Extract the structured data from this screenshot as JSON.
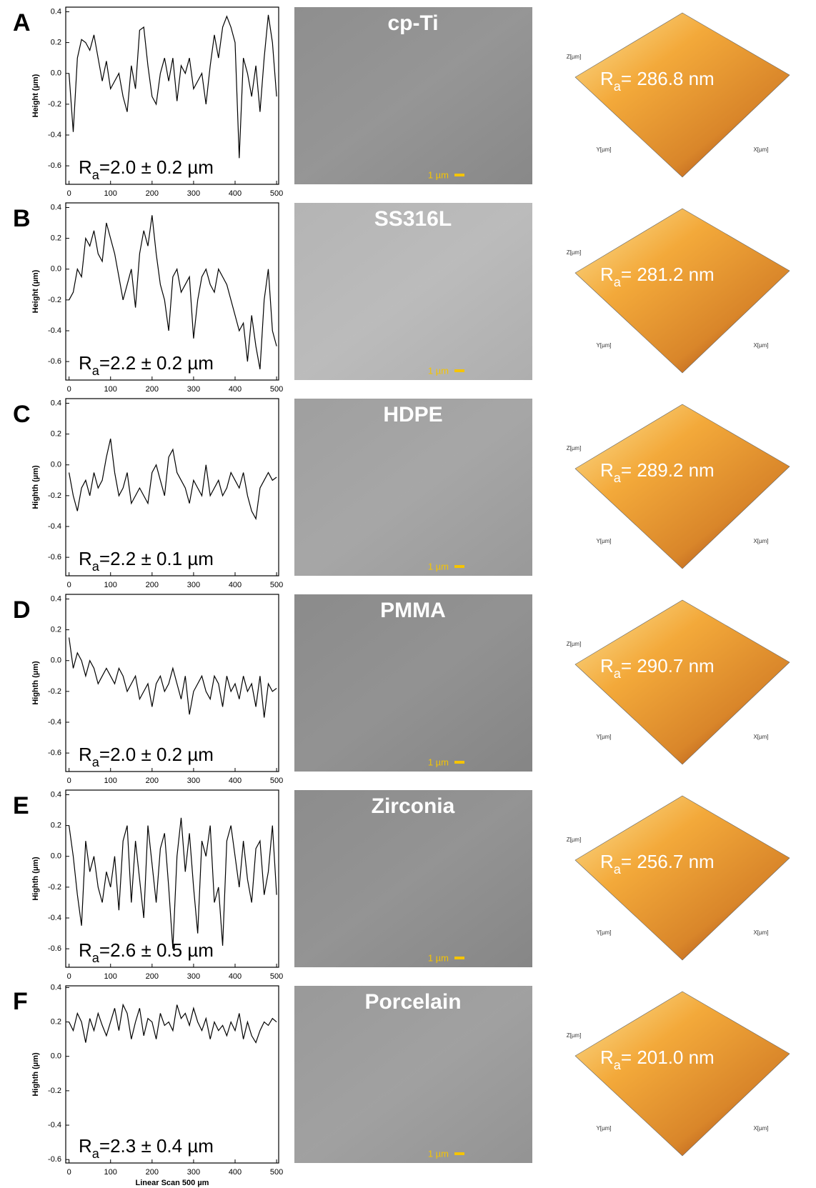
{
  "chart_data": [
    {
      "type": "line",
      "panel": "A",
      "ylabel": "Height (µm)",
      "annotation": [
        "R",
        "a",
        "=2.0 ± 0.2 µm"
      ],
      "color": "#000000",
      "xlim": [
        -8,
        505
      ],
      "ylim": [
        -0.72,
        0.43
      ],
      "xticks": [
        0,
        100,
        200,
        300,
        400,
        500
      ],
      "yticks": [
        0.4,
        0.2,
        {
          "value": 0,
          "label": "0.0"
        },
        -0.2,
        -0.4,
        -0.6
      ],
      "x": [
        0,
        10,
        20,
        30,
        40,
        50,
        60,
        70,
        80,
        90,
        100,
        110,
        120,
        130,
        140,
        150,
        160,
        170,
        180,
        190,
        200,
        210,
        220,
        230,
        240,
        250,
        260,
        270,
        280,
        290,
        300,
        310,
        320,
        330,
        340,
        350,
        360,
        370,
        380,
        390,
        400,
        410,
        420,
        430,
        440,
        450,
        460,
        470,
        480,
        490,
        500
      ],
      "values": [
        0.0,
        -0.38,
        0.1,
        0.22,
        0.2,
        0.15,
        0.25,
        0.1,
        -0.05,
        0.08,
        -0.1,
        -0.05,
        0.0,
        -0.15,
        -0.25,
        0.05,
        -0.1,
        0.28,
        0.3,
        0.05,
        -0.15,
        -0.2,
        0.0,
        0.1,
        -0.05,
        0.1,
        -0.18,
        0.05,
        0.0,
        0.1,
        -0.1,
        -0.05,
        0.0,
        -0.2,
        0.05,
        0.25,
        0.1,
        0.3,
        0.37,
        0.3,
        0.2,
        -0.55,
        0.1,
        0.0,
        -0.15,
        0.05,
        -0.25,
        0.1,
        0.38,
        0.2,
        -0.15
      ]
    },
    {
      "type": "line",
      "panel": "B",
      "ylabel": "Height (µm)",
      "annotation": [
        "R",
        "a",
        "=2.2 ± 0.2 µm"
      ],
      "color": "#000000",
      "xlim": [
        -8,
        505
      ],
      "ylim": [
        -0.72,
        0.43
      ],
      "xticks": [
        0,
        100,
        200,
        300,
        400,
        500
      ],
      "yticks": [
        0.4,
        0.2,
        {
          "value": 0,
          "label": "0.0"
        },
        -0.2,
        -0.4,
        -0.6
      ],
      "x": [
        0,
        10,
        20,
        30,
        40,
        50,
        60,
        70,
        80,
        90,
        100,
        110,
        120,
        130,
        140,
        150,
        160,
        170,
        180,
        190,
        200,
        210,
        220,
        230,
        240,
        250,
        260,
        270,
        280,
        290,
        300,
        310,
        320,
        330,
        340,
        350,
        360,
        370,
        380,
        390,
        400,
        410,
        420,
        430,
        440,
        450,
        460,
        470,
        480,
        490,
        500
      ],
      "values": [
        -0.2,
        -0.15,
        0.0,
        -0.05,
        0.2,
        0.15,
        0.25,
        0.1,
        0.05,
        0.3,
        0.2,
        0.1,
        -0.05,
        -0.2,
        -0.1,
        0.0,
        -0.25,
        0.1,
        0.25,
        0.15,
        0.35,
        0.1,
        -0.1,
        -0.2,
        -0.4,
        -0.05,
        0.0,
        -0.15,
        -0.1,
        -0.05,
        -0.45,
        -0.2,
        -0.05,
        0.0,
        -0.1,
        -0.15,
        0.0,
        -0.05,
        -0.1,
        -0.2,
        -0.3,
        -0.4,
        -0.35,
        -0.6,
        -0.3,
        -0.5,
        -0.65,
        -0.2,
        0.0,
        -0.4,
        -0.5
      ]
    },
    {
      "type": "line",
      "panel": "C",
      "ylabel": "Highth (µm)",
      "annotation": [
        "R",
        "a",
        "=2.2 ± 0.1 µm"
      ],
      "color": "#000000",
      "xlim": [
        -8,
        505
      ],
      "ylim": [
        -0.72,
        0.43
      ],
      "xticks": [
        0,
        100,
        200,
        300,
        400,
        500
      ],
      "yticks": [
        0.4,
        0.2,
        {
          "value": 0,
          "label": "0.0"
        },
        -0.2,
        -0.4,
        -0.6
      ],
      "x": [
        0,
        10,
        20,
        30,
        40,
        50,
        60,
        70,
        80,
        90,
        100,
        110,
        120,
        130,
        140,
        150,
        160,
        170,
        180,
        190,
        200,
        210,
        220,
        230,
        240,
        250,
        260,
        270,
        280,
        290,
        300,
        310,
        320,
        330,
        340,
        350,
        360,
        370,
        380,
        390,
        400,
        410,
        420,
        430,
        440,
        450,
        460,
        470,
        480,
        490,
        500
      ],
      "values": [
        -0.05,
        -0.2,
        -0.3,
        -0.15,
        -0.1,
        -0.2,
        -0.05,
        -0.15,
        -0.1,
        0.05,
        0.17,
        -0.05,
        -0.2,
        -0.15,
        -0.05,
        -0.25,
        -0.2,
        -0.15,
        -0.2,
        -0.25,
        -0.05,
        0.0,
        -0.1,
        -0.2,
        0.05,
        0.1,
        -0.05,
        -0.1,
        -0.15,
        -0.25,
        -0.1,
        -0.15,
        -0.2,
        0.0,
        -0.2,
        -0.15,
        -0.1,
        -0.2,
        -0.15,
        -0.05,
        -0.1,
        -0.15,
        -0.05,
        -0.2,
        -0.3,
        -0.35,
        -0.15,
        -0.1,
        -0.05,
        -0.1,
        -0.08
      ]
    },
    {
      "type": "line",
      "panel": "D",
      "ylabel": "Highth (µm)",
      "annotation": [
        "R",
        "a",
        "=2.0 ± 0.2 µm"
      ],
      "color": "#000000",
      "xlim": [
        -8,
        505
      ],
      "ylim": [
        -0.72,
        0.43
      ],
      "xticks": [
        0,
        100,
        200,
        300,
        400,
        500
      ],
      "yticks": [
        0.4,
        0.2,
        {
          "value": 0,
          "label": "0.0"
        },
        -0.2,
        -0.4,
        -0.6
      ],
      "x": [
        0,
        10,
        20,
        30,
        40,
        50,
        60,
        70,
        80,
        90,
        100,
        110,
        120,
        130,
        140,
        150,
        160,
        170,
        180,
        190,
        200,
        210,
        220,
        230,
        240,
        250,
        260,
        270,
        280,
        290,
        300,
        310,
        320,
        330,
        340,
        350,
        360,
        370,
        380,
        390,
        400,
        410,
        420,
        430,
        440,
        450,
        460,
        470,
        480,
        490,
        500
      ],
      "values": [
        0.15,
        -0.05,
        0.05,
        0.0,
        -0.1,
        0.0,
        -0.05,
        -0.15,
        -0.1,
        -0.05,
        -0.1,
        -0.15,
        -0.05,
        -0.1,
        -0.2,
        -0.15,
        -0.1,
        -0.25,
        -0.2,
        -0.15,
        -0.3,
        -0.15,
        -0.1,
        -0.2,
        -0.15,
        -0.05,
        -0.15,
        -0.25,
        -0.1,
        -0.35,
        -0.2,
        -0.15,
        -0.1,
        -0.2,
        -0.25,
        -0.1,
        -0.15,
        -0.3,
        -0.1,
        -0.2,
        -0.15,
        -0.25,
        -0.1,
        -0.2,
        -0.15,
        -0.3,
        -0.1,
        -0.37,
        -0.15,
        -0.2,
        -0.18
      ]
    },
    {
      "type": "line",
      "panel": "E",
      "ylabel": "Highth (µm)",
      "annotation": [
        "R",
        "a",
        "=2.6 ± 0.5 µm"
      ],
      "color": "#000000",
      "xlim": [
        -8,
        505
      ],
      "ylim": [
        -0.72,
        0.43
      ],
      "xticks": [
        0,
        100,
        200,
        300,
        400,
        500
      ],
      "yticks": [
        0.4,
        0.2,
        {
          "value": 0,
          "label": "0.0"
        },
        -0.2,
        -0.4,
        -0.6
      ],
      "x": [
        0,
        10,
        20,
        30,
        40,
        50,
        60,
        70,
        80,
        90,
        100,
        110,
        120,
        130,
        140,
        150,
        160,
        170,
        180,
        190,
        200,
        210,
        220,
        230,
        240,
        250,
        260,
        270,
        280,
        290,
        300,
        310,
        320,
        330,
        340,
        350,
        360,
        370,
        380,
        390,
        400,
        410,
        420,
        430,
        440,
        450,
        460,
        470,
        480,
        490,
        500
      ],
      "values": [
        0.2,
        0.0,
        -0.25,
        -0.45,
        0.1,
        -0.1,
        0.0,
        -0.2,
        -0.3,
        -0.1,
        -0.2,
        0.0,
        -0.35,
        0.1,
        0.2,
        -0.3,
        0.1,
        -0.15,
        -0.4,
        0.2,
        -0.05,
        -0.3,
        0.05,
        0.15,
        -0.2,
        -0.6,
        0.0,
        0.25,
        -0.1,
        0.15,
        -0.2,
        -0.5,
        0.1,
        0.0,
        0.2,
        -0.3,
        -0.2,
        -0.58,
        0.1,
        0.2,
        0.0,
        -0.2,
        0.1,
        -0.15,
        -0.3,
        0.05,
        0.1,
        -0.25,
        -0.1,
        0.2,
        -0.25
      ]
    },
    {
      "type": "line",
      "panel": "F",
      "ylabel": "Highth (µm)",
      "xlabel": "Linear Scan 500 µm",
      "annotation": [
        "R",
        "a",
        "=2.3 ± 0.4 µm"
      ],
      "color": "#000000",
      "xlim": [
        -8,
        505
      ],
      "ylim": [
        -0.62,
        0.41
      ],
      "xticks": [
        0,
        100,
        200,
        300,
        400,
        500
      ],
      "yticks": [
        0.4,
        0.2,
        {
          "value": 0,
          "label": "0.0"
        },
        -0.2,
        -0.4,
        -0.6
      ],
      "x": [
        0,
        10,
        20,
        30,
        40,
        50,
        60,
        70,
        80,
        90,
        100,
        110,
        120,
        130,
        140,
        150,
        160,
        170,
        180,
        190,
        200,
        210,
        220,
        230,
        240,
        250,
        260,
        270,
        280,
        290,
        300,
        310,
        320,
        330,
        340,
        350,
        360,
        370,
        380,
        390,
        400,
        410,
        420,
        430,
        440,
        450,
        460,
        470,
        480,
        490,
        500
      ],
      "values": [
        0.2,
        0.15,
        0.25,
        0.2,
        0.08,
        0.22,
        0.15,
        0.25,
        0.18,
        0.12,
        0.2,
        0.28,
        0.15,
        0.3,
        0.25,
        0.1,
        0.2,
        0.28,
        0.12,
        0.22,
        0.2,
        0.1,
        0.25,
        0.18,
        0.2,
        0.15,
        0.3,
        0.22,
        0.25,
        0.18,
        0.28,
        0.2,
        0.15,
        0.22,
        0.1,
        0.2,
        0.15,
        0.18,
        0.12,
        0.2,
        0.15,
        0.25,
        0.1,
        0.2,
        0.12,
        0.08,
        0.15,
        0.2,
        0.18,
        0.22,
        0.2
      ]
    }
  ],
  "images": [
    {
      "sem_title": "cp-Ti",
      "scale_bar": "1 µm",
      "afm_label": [
        "R",
        "a",
        "= 286.8 nm"
      ],
      "afm_axes": [
        "Z[µm]",
        "Y[µm]",
        "X[µm]"
      ]
    },
    {
      "sem_title": "SS316L",
      "scale_bar": "1 µm",
      "afm_label": [
        "R",
        "a",
        "= 281.2 nm"
      ],
      "afm_axes": [
        "Z[µm]",
        "Y[µm]",
        "X[µm]"
      ]
    },
    {
      "sem_title": "HDPE",
      "scale_bar": "1 µm",
      "afm_label": [
        "R",
        "a",
        "= 289.2 nm"
      ],
      "afm_axes": [
        "Z[µm]",
        "Y[µm]",
        "X[µm]"
      ]
    },
    {
      "sem_title": "PMMA",
      "scale_bar": "1 µm",
      "afm_label": [
        "R",
        "a",
        "= 290.7 nm"
      ],
      "afm_axes": [
        "Z[µm]",
        "Y[µm]",
        "X[µm]"
      ]
    },
    {
      "sem_title": "Zirconia",
      "scale_bar": "1 µm",
      "afm_label": [
        "R",
        "a",
        "= 256.7 nm"
      ],
      "afm_axes": [
        "Z[µm]",
        "Y[µm]",
        "X[µm]"
      ]
    },
    {
      "sem_title": "Porcelain",
      "scale_bar": "1 µm",
      "afm_label": [
        "R",
        "a",
        "= 201.0 nm"
      ],
      "afm_axes": [
        "Z[µm]",
        "Y[µm]",
        "X[µm]"
      ]
    }
  ]
}
